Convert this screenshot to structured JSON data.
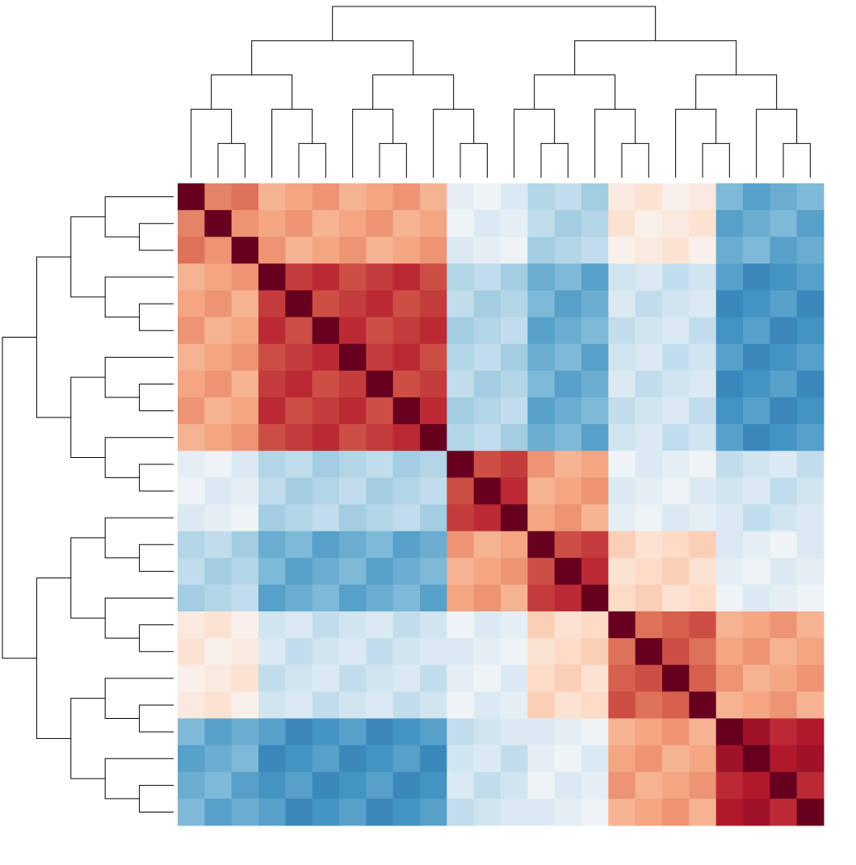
{
  "chart_data": {
    "type": "clustered-heatmap",
    "categories": [
      null,
      null,
      null,
      null,
      null,
      null,
      null,
      null,
      null,
      null,
      null,
      null,
      null,
      null,
      null,
      null,
      null,
      null,
      null,
      null,
      null,
      null,
      null,
      null
    ],
    "rows": [
      null,
      null,
      null,
      null,
      null,
      null,
      null,
      null,
      null,
      null,
      null,
      null,
      null,
      null,
      null,
      null,
      null,
      null,
      null,
      null,
      null,
      null,
      null,
      null
    ],
    "values": [
      [
        1,
        0.5,
        0.55,
        0.35,
        0.4,
        0.45,
        0.35,
        0.4,
        0.45,
        0.35,
        -0.1,
        -0.05,
        -0.15,
        -0.3,
        -0.25,
        -0.35,
        0.1,
        0.15,
        0.05,
        0.1,
        -0.45,
        -0.55,
        -0.5,
        -0.45
      ],
      [
        0.5,
        1,
        0.45,
        0.4,
        0.45,
        0.35,
        0.4,
        0.45,
        0.35,
        0.4,
        -0.05,
        -0.15,
        -0.1,
        -0.25,
        -0.35,
        -0.3,
        0.15,
        0.05,
        0.1,
        0.15,
        -0.55,
        -0.5,
        -0.45,
        -0.55
      ],
      [
        0.55,
        0.45,
        1,
        0.45,
        0.35,
        0.4,
        0.45,
        0.35,
        0.4,
        0.45,
        -0.15,
        -0.1,
        -0.05,
        -0.35,
        -0.3,
        -0.25,
        0.05,
        0.1,
        0.15,
        0.05,
        -0.5,
        -0.45,
        -0.55,
        -0.5
      ],
      [
        0.35,
        0.4,
        0.45,
        1,
        0.7,
        0.75,
        0.65,
        0.7,
        0.75,
        0.65,
        -0.3,
        -0.25,
        -0.35,
        -0.5,
        -0.45,
        -0.55,
        -0.2,
        -0.15,
        -0.25,
        -0.2,
        -0.55,
        -0.65,
        -0.6,
        -0.55
      ],
      [
        0.4,
        0.45,
        0.35,
        0.7,
        1,
        0.65,
        0.7,
        0.75,
        0.65,
        0.7,
        -0.25,
        -0.35,
        -0.3,
        -0.45,
        -0.55,
        -0.5,
        -0.15,
        -0.25,
        -0.2,
        -0.15,
        -0.65,
        -0.6,
        -0.55,
        -0.65
      ],
      [
        0.45,
        0.35,
        0.4,
        0.75,
        0.65,
        1,
        0.75,
        0.65,
        0.7,
        0.75,
        -0.35,
        -0.3,
        -0.25,
        -0.55,
        -0.5,
        -0.45,
        -0.25,
        -0.2,
        -0.15,
        -0.25,
        -0.6,
        -0.55,
        -0.65,
        -0.6
      ],
      [
        0.35,
        0.4,
        0.45,
        0.65,
        0.7,
        0.75,
        1,
        0.7,
        0.75,
        0.65,
        -0.3,
        -0.25,
        -0.35,
        -0.5,
        -0.45,
        -0.55,
        -0.2,
        -0.15,
        -0.25,
        -0.2,
        -0.55,
        -0.65,
        -0.6,
        -0.55
      ],
      [
        0.4,
        0.45,
        0.35,
        0.7,
        0.75,
        0.65,
        0.7,
        1,
        0.65,
        0.7,
        -0.25,
        -0.35,
        -0.3,
        -0.45,
        -0.55,
        -0.5,
        -0.15,
        -0.25,
        -0.2,
        -0.15,
        -0.65,
        -0.6,
        -0.55,
        -0.65
      ],
      [
        0.45,
        0.35,
        0.4,
        0.75,
        0.65,
        0.7,
        0.75,
        0.65,
        1,
        0.75,
        -0.35,
        -0.3,
        -0.25,
        -0.55,
        -0.5,
        -0.45,
        -0.25,
        -0.2,
        -0.15,
        -0.25,
        -0.6,
        -0.55,
        -0.65,
        -0.6
      ],
      [
        0.35,
        0.4,
        0.45,
        0.65,
        0.7,
        0.75,
        0.65,
        0.7,
        0.75,
        1,
        -0.3,
        -0.25,
        -0.35,
        -0.5,
        -0.45,
        -0.55,
        -0.2,
        -0.15,
        -0.25,
        -0.2,
        -0.55,
        -0.65,
        -0.6,
        -0.55
      ],
      [
        -0.1,
        -0.05,
        -0.15,
        -0.3,
        -0.25,
        -0.35,
        -0.3,
        -0.25,
        -0.35,
        -0.3,
        1,
        0.65,
        0.7,
        0.45,
        0.35,
        0.4,
        -0.05,
        -0.15,
        -0.1,
        -0.05,
        -0.25,
        -0.2,
        -0.15,
        -0.25
      ],
      [
        -0.05,
        -0.15,
        -0.1,
        -0.25,
        -0.35,
        -0.3,
        -0.25,
        -0.35,
        -0.3,
        -0.25,
        0.65,
        1,
        0.75,
        0.35,
        0.4,
        0.45,
        -0.15,
        -0.1,
        -0.05,
        -0.15,
        -0.2,
        -0.15,
        -0.25,
        -0.2
      ],
      [
        -0.15,
        -0.1,
        -0.05,
        -0.35,
        -0.3,
        -0.25,
        -0.35,
        -0.3,
        -0.25,
        -0.35,
        0.7,
        0.75,
        1,
        0.4,
        0.45,
        0.35,
        -0.1,
        -0.05,
        -0.15,
        -0.1,
        -0.15,
        -0.25,
        -0.2,
        -0.15
      ],
      [
        -0.3,
        -0.25,
        -0.35,
        -0.5,
        -0.45,
        -0.55,
        -0.5,
        -0.45,
        -0.55,
        -0.5,
        0.45,
        0.35,
        0.4,
        1,
        0.65,
        0.7,
        0.25,
        0.15,
        0.2,
        0.25,
        -0.15,
        -0.1,
        -0.05,
        -0.15
      ],
      [
        -0.25,
        -0.35,
        -0.3,
        -0.45,
        -0.55,
        -0.5,
        -0.45,
        -0.55,
        -0.5,
        -0.45,
        0.35,
        0.4,
        0.45,
        0.65,
        1,
        0.75,
        0.15,
        0.2,
        0.25,
        0.15,
        -0.1,
        -0.05,
        -0.15,
        -0.1
      ],
      [
        -0.35,
        -0.3,
        -0.25,
        -0.55,
        -0.5,
        -0.45,
        -0.55,
        -0.5,
        -0.45,
        -0.55,
        0.4,
        0.45,
        0.35,
        0.7,
        0.75,
        1,
        0.2,
        0.25,
        0.15,
        0.2,
        -0.05,
        -0.15,
        -0.1,
        -0.05
      ],
      [
        0.1,
        0.15,
        0.05,
        -0.2,
        -0.15,
        -0.25,
        -0.2,
        -0.15,
        -0.25,
        -0.2,
        -0.05,
        -0.15,
        -0.1,
        0.25,
        0.15,
        0.2,
        1,
        0.55,
        0.6,
        0.65,
        0.35,
        0.4,
        0.45,
        0.35
      ],
      [
        0.15,
        0.05,
        0.1,
        -0.15,
        -0.25,
        -0.2,
        -0.15,
        -0.25,
        -0.2,
        -0.15,
        -0.15,
        -0.1,
        -0.05,
        0.15,
        0.2,
        0.25,
        0.55,
        1,
        0.65,
        0.55,
        0.4,
        0.45,
        0.35,
        0.4
      ],
      [
        0.05,
        0.1,
        0.15,
        -0.25,
        -0.2,
        -0.15,
        -0.25,
        -0.2,
        -0.15,
        -0.25,
        -0.1,
        -0.05,
        -0.15,
        0.2,
        0.25,
        0.15,
        0.6,
        0.65,
        1,
        0.6,
        0.45,
        0.35,
        0.4,
        0.45
      ],
      [
        0.1,
        0.15,
        0.05,
        -0.2,
        -0.15,
        -0.25,
        -0.2,
        -0.15,
        -0.25,
        -0.2,
        -0.05,
        -0.15,
        -0.1,
        0.25,
        0.15,
        0.2,
        0.65,
        0.55,
        0.6,
        1,
        0.35,
        0.4,
        0.45,
        0.35
      ],
      [
        -0.45,
        -0.55,
        -0.5,
        -0.55,
        -0.65,
        -0.6,
        -0.55,
        -0.65,
        -0.6,
        -0.55,
        -0.25,
        -0.2,
        -0.15,
        -0.15,
        -0.1,
        -0.05,
        0.35,
        0.4,
        0.45,
        0.35,
        1,
        0.85,
        0.75,
        0.8
      ],
      [
        -0.55,
        -0.5,
        -0.45,
        -0.65,
        -0.6,
        -0.55,
        -0.65,
        -0.6,
        -0.55,
        -0.65,
        -0.2,
        -0.15,
        -0.25,
        -0.1,
        -0.05,
        -0.15,
        0.4,
        0.45,
        0.35,
        0.4,
        0.85,
        1,
        0.8,
        0.85
      ],
      [
        -0.5,
        -0.45,
        -0.55,
        -0.6,
        -0.55,
        -0.65,
        -0.6,
        -0.55,
        -0.65,
        -0.6,
        -0.15,
        -0.25,
        -0.2,
        -0.05,
        -0.15,
        -0.1,
        0.45,
        0.35,
        0.4,
        0.45,
        0.75,
        0.8,
        1,
        0.75
      ],
      [
        -0.45,
        -0.55,
        -0.5,
        -0.55,
        -0.65,
        -0.6,
        -0.55,
        -0.65,
        -0.6,
        -0.55,
        -0.25,
        -0.2,
        -0.15,
        -0.15,
        -0.1,
        -0.05,
        0.35,
        0.4,
        0.45,
        0.35,
        0.8,
        0.85,
        0.75,
        1
      ]
    ],
    "vlim": [
      -1,
      1
    ],
    "colors": [
      "#053061",
      "#2166ac",
      "#4393c3",
      "#92c5de",
      "#d1e5f0",
      "#f7f7f7",
      "#fddbc7",
      "#f4a582",
      "#d6604d",
      "#b2182b",
      "#67001f"
    ]
  }
}
